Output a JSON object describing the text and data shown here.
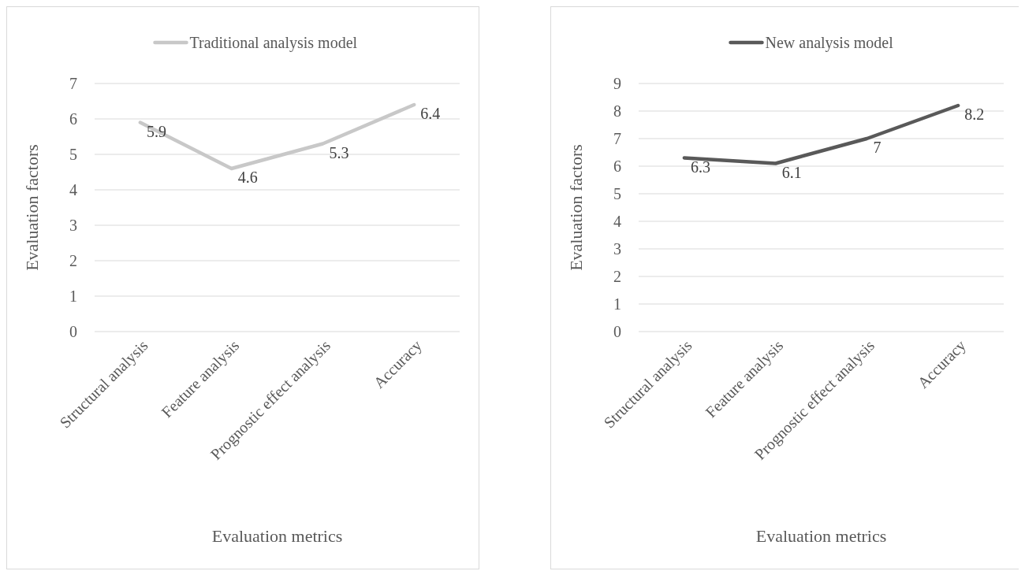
{
  "chart_data": [
    {
      "type": "line",
      "xlabel": "Evaluation metrics",
      "ylabel": "Evaluation factors",
      "categories": [
        "Structural analysis",
        "Feature analysis",
        "Prognostic effect analysis",
        "Accuracy"
      ],
      "series": [
        {
          "name": "Traditional analysis model",
          "color": "#c8c8c8",
          "values": [
            5.9,
            4.6,
            5.3,
            6.4
          ]
        }
      ],
      "ylim": [
        0,
        7
      ],
      "yticks": [
        0,
        1,
        2,
        3,
        4,
        5,
        6,
        7
      ],
      "grid": "y",
      "legend": "top",
      "data_labels": true,
      "marker": "none"
    },
    {
      "type": "line",
      "xlabel": "Evaluation metrics",
      "ylabel": "Evaluation factors",
      "categories": [
        "Structural analysis",
        "Feature analysis",
        "Prognostic effect analysis",
        "Accuracy"
      ],
      "series": [
        {
          "name": "New analysis model",
          "color": "#595959",
          "values": [
            6.3,
            6.1,
            7,
            8.2
          ]
        }
      ],
      "ylim": [
        0,
        9
      ],
      "yticks": [
        0,
        1,
        2,
        3,
        4,
        5,
        6,
        7,
        8,
        9
      ],
      "grid": "y",
      "legend": "top",
      "data_labels": true,
      "marker": "none"
    }
  ]
}
